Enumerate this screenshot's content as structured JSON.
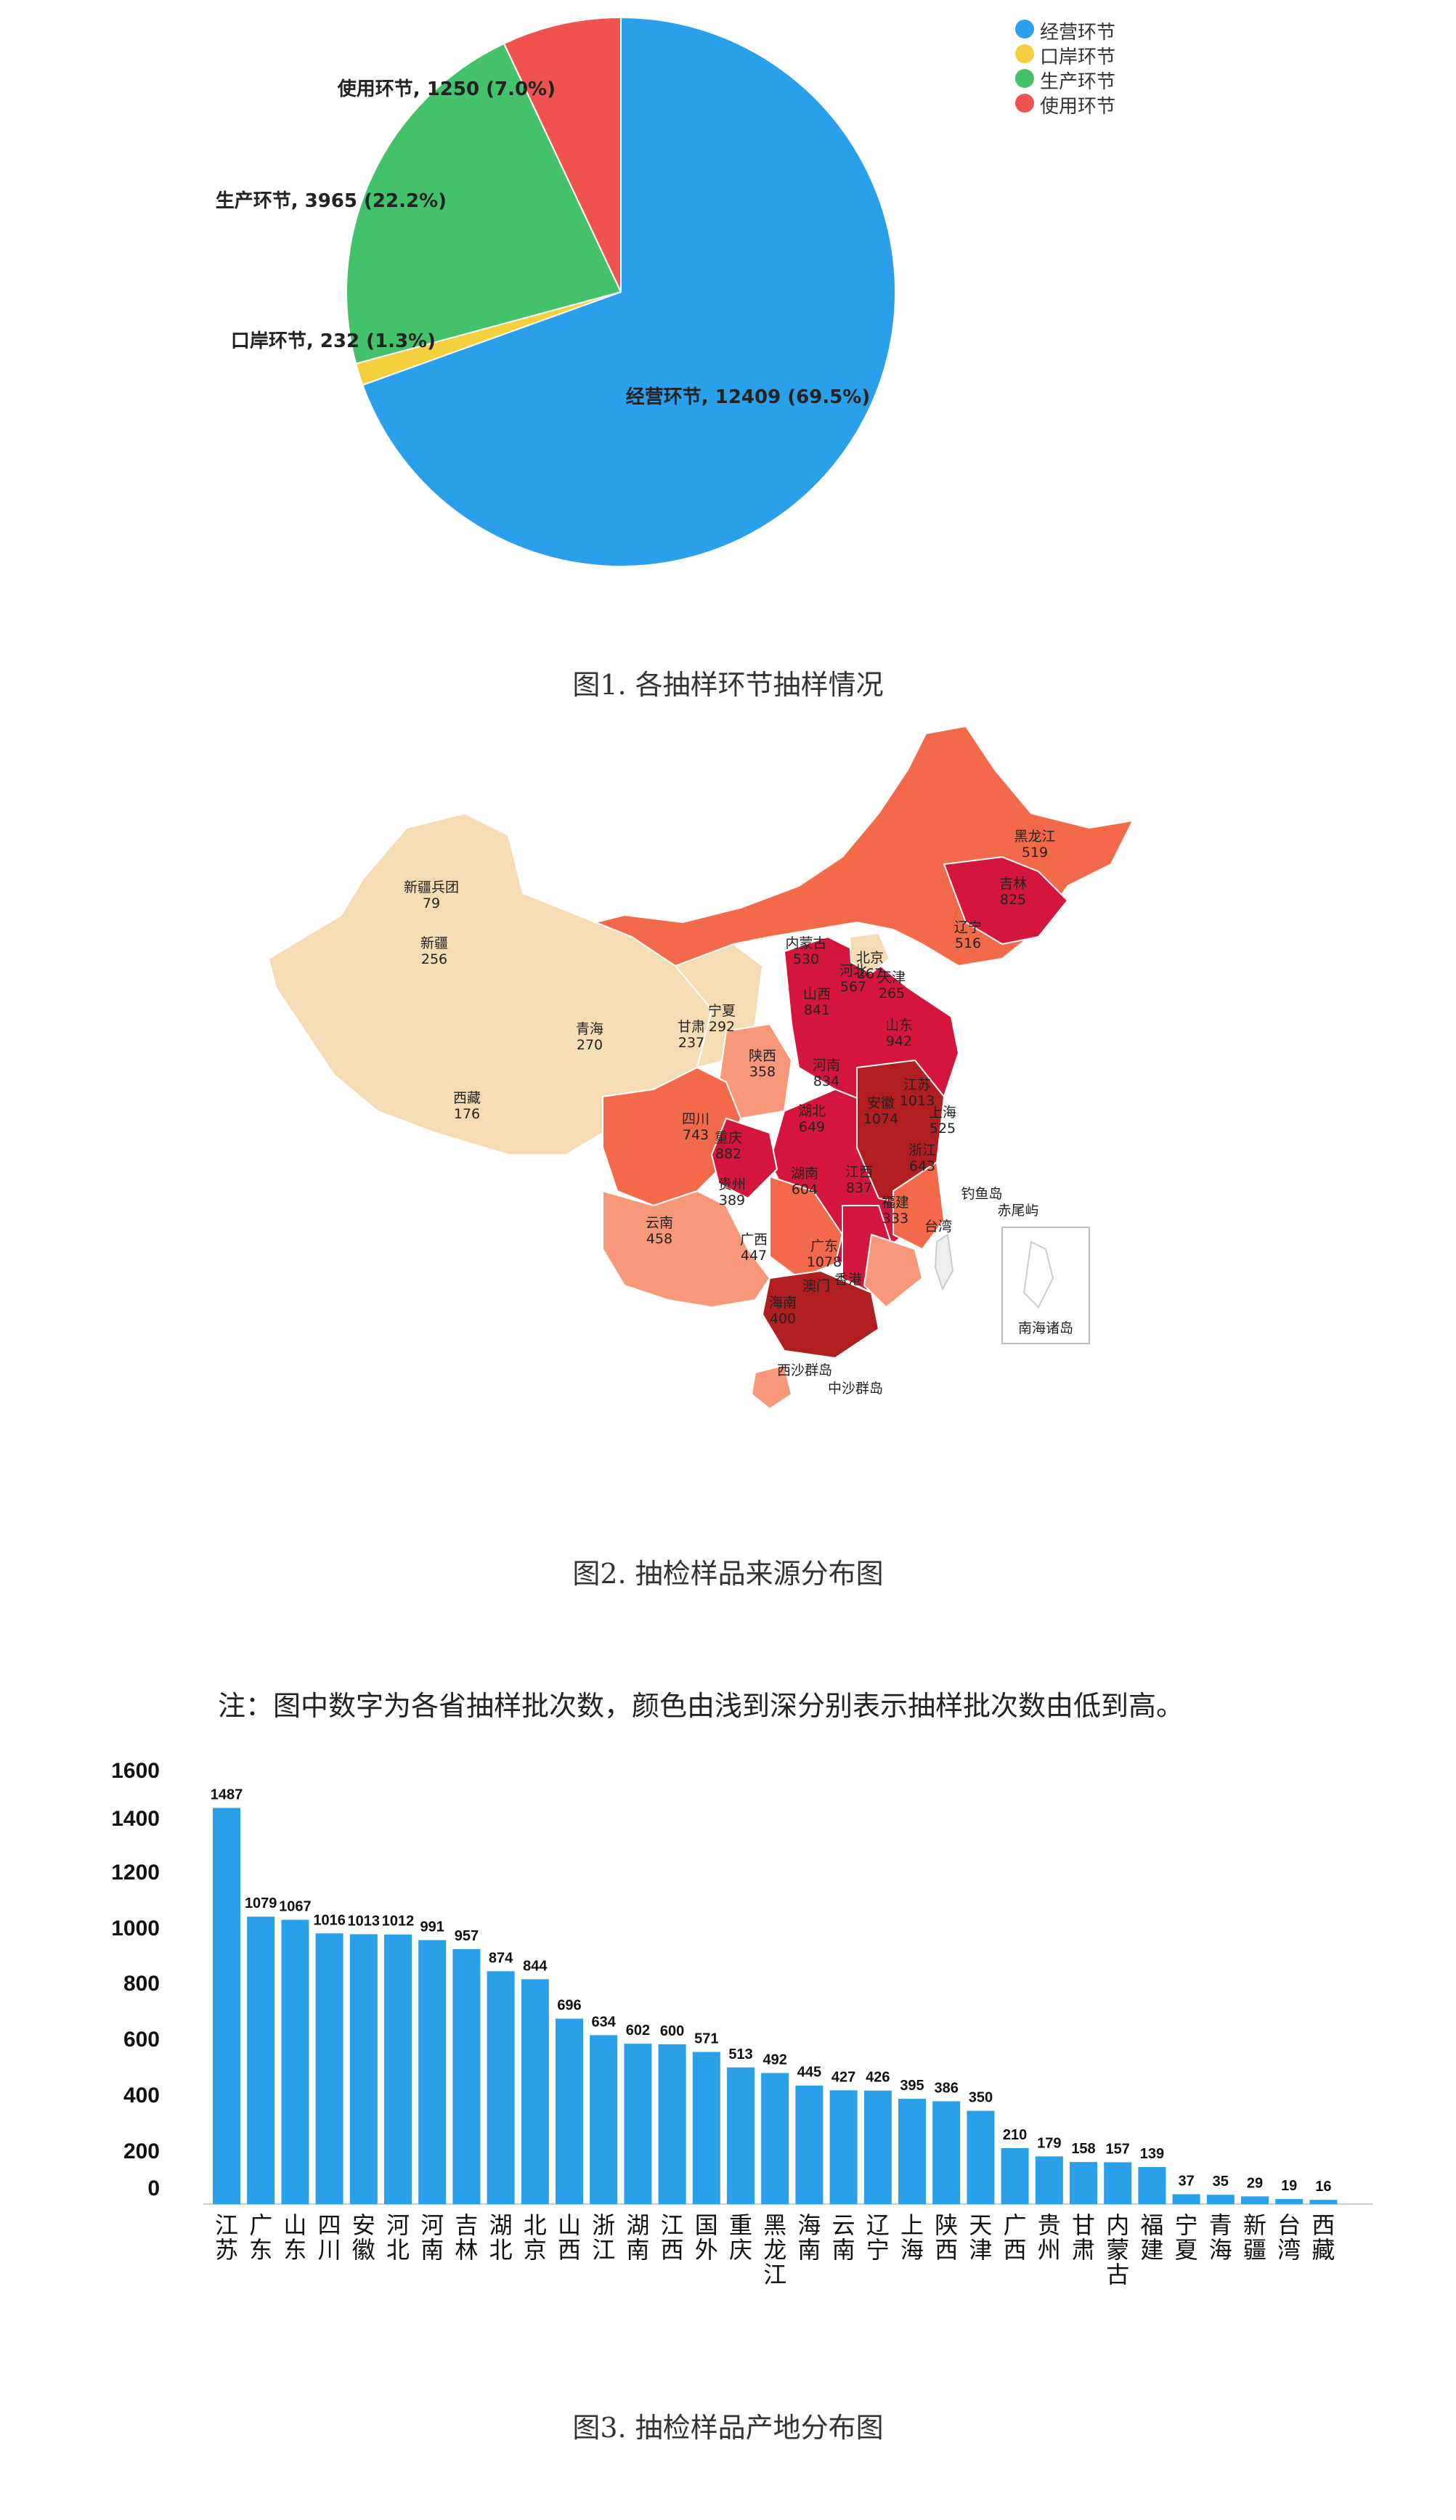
{
  "chart_data": [
    {
      "type": "pie",
      "title": "",
      "slices": [
        {
          "name": "经营环节",
          "value": 12409,
          "percent": "69.5%",
          "label": "经营环节, 12409 (69.5%)",
          "color": "#2ba0ea"
        },
        {
          "name": "口岸环节",
          "value": 232,
          "percent": "1.3%",
          "label": "口岸环节, 232 (1.3%)",
          "color": "#f4d03f"
        },
        {
          "name": "生产环节",
          "value": 3965,
          "percent": "22.2%",
          "label": "生产环节, 3965 (22.2%)",
          "color": "#44c16b"
        },
        {
          "name": "使用环节",
          "value": 1250,
          "percent": "7.0%",
          "label": "使用环节, 1250 (7.0%)",
          "color": "#ef5350"
        }
      ],
      "legend": [
        "经营环节",
        "口岸环节",
        "生产环节",
        "使用环节"
      ],
      "legend_position": "top-right"
    },
    {
      "type": "map",
      "regions": [
        {
          "name": "黑龙江",
          "value": 519
        },
        {
          "name": "吉林",
          "value": 825
        },
        {
          "name": "辽宁",
          "value": 516
        },
        {
          "name": "内蒙古",
          "value": 530
        },
        {
          "name": "北京",
          "value": 267
        },
        {
          "name": "天津",
          "value": 265
        },
        {
          "name": "河北",
          "value": 567
        },
        {
          "name": "山西",
          "value": 841
        },
        {
          "name": "山东",
          "value": 942
        },
        {
          "name": "新疆兵团",
          "value": 79
        },
        {
          "name": "新疆",
          "value": 256
        },
        {
          "name": "青海",
          "value": 270
        },
        {
          "name": "西藏",
          "value": 176
        },
        {
          "name": "宁夏",
          "value": 292
        },
        {
          "name": "甘肃",
          "value": 237
        },
        {
          "name": "陕西",
          "value": 358
        },
        {
          "name": "河南",
          "value": 834
        },
        {
          "name": "江苏",
          "value": 1013
        },
        {
          "name": "安徽",
          "value": 1074
        },
        {
          "name": "上海",
          "value": 525
        },
        {
          "name": "湖北",
          "value": 649
        },
        {
          "name": "四川",
          "value": 743
        },
        {
          "name": "重庆",
          "value": 882
        },
        {
          "name": "浙江",
          "value": 643
        },
        {
          "name": "贵州",
          "value": 389
        },
        {
          "name": "湖南",
          "value": 604
        },
        {
          "name": "江西",
          "value": 837
        },
        {
          "name": "福建",
          "value": 333
        },
        {
          "name": "云南",
          "value": 458
        },
        {
          "name": "广西",
          "value": 447
        },
        {
          "name": "广东",
          "value": 1078
        },
        {
          "name": "海南",
          "value": 400
        }
      ],
      "other_labels": [
        "钓鱼岛",
        "赤尾屿",
        "台湾",
        "澳门",
        "香港",
        "南海诸岛",
        "西沙群岛",
        "中沙群岛"
      ]
    },
    {
      "type": "bar",
      "categories": [
        "江苏",
        "广东",
        "山东",
        "四川",
        "安徽",
        "河北",
        "河南",
        "吉林",
        "湖北",
        "北京",
        "山西",
        "浙江",
        "湖南",
        "江西",
        "国外",
        "重庆",
        "黑龙江",
        "海南",
        "云南",
        "辽宁",
        "上海",
        "陕西",
        "天津",
        "广西",
        "贵州",
        "甘肃",
        "内蒙古",
        "福建",
        "宁夏",
        "青海",
        "新疆",
        "台湾",
        "西藏"
      ],
      "values": [
        1487,
        1079,
        1067,
        1016,
        1013,
        1012,
        991,
        957,
        874,
        844,
        696,
        634,
        602,
        600,
        571,
        513,
        492,
        445,
        427,
        426,
        395,
        386,
        350,
        210,
        179,
        158,
        157,
        139,
        37,
        35,
        29,
        19,
        16
      ],
      "yticks": [
        "1600",
        "1400",
        "1200",
        "1000",
        "800",
        "600",
        "400",
        "200",
        "0"
      ],
      "ylim": [
        0,
        1600
      ],
      "color": "#2ba0ea"
    }
  ],
  "captions": {
    "fig1": "图1. 各抽样环节抽样情况",
    "fig2": "图2. 抽检样品来源分布图",
    "fig3": "图3. 抽检样品产地分布图"
  },
  "note": "注：图中数字为各省抽样批次数，颜色由浅到深分别表示抽样批次数由低到高。"
}
